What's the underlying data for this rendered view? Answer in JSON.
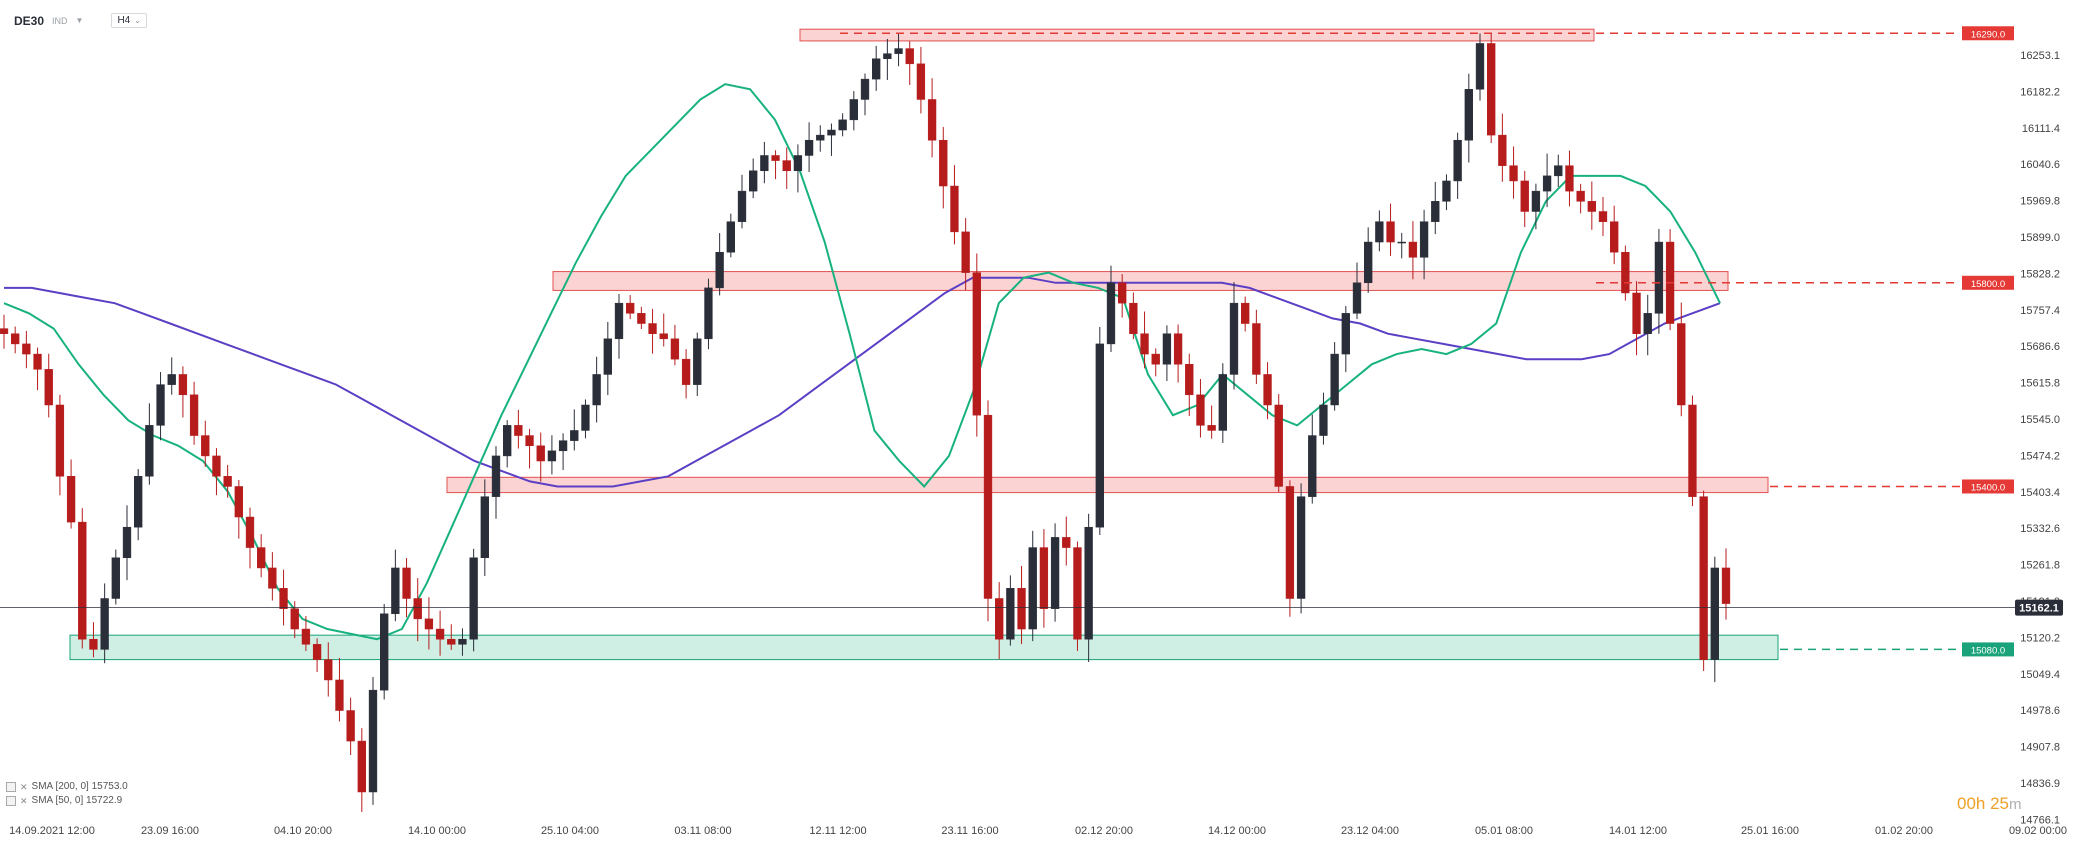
{
  "header": {
    "symbol": "DE30",
    "exchange": "IND",
    "timeframe": "H4"
  },
  "legend": {
    "sma200": "SMA [200, 0] 15753.0",
    "sma50": "SMA [50, 0] 15722.9"
  },
  "timer": {
    "main": "00h 25",
    "sub": "m"
  },
  "chart_data": {
    "type": "candlestick",
    "symbol": "DE30",
    "timeframe": "H4",
    "current_price": 15162.1,
    "ylim": [
      14745,
      16320
    ],
    "y_ticks": [
      "16253.1",
      "16182.2",
      "16111.4",
      "16040.6",
      "15969.8",
      "15899.0",
      "15828.2",
      "15757.4",
      "15686.6",
      "15615.8",
      "15545.0",
      "15474.2",
      "15403.4",
      "15332.6",
      "15261.8",
      "15191.0",
      "15120.2",
      "15049.4",
      "14978.6",
      "14907.8",
      "14836.9",
      "14766.1"
    ],
    "x_ticks": [
      "14.09.2021  12:00",
      "23.09  16:00",
      "04.10  20:00",
      "14.10  00:00",
      "25.10  04:00",
      "03.11  08:00",
      "12.11  12:00",
      "23.11  16:00",
      "02.12  20:00",
      "14.12  00:00",
      "23.12  04:00",
      "05.01  08:00",
      "14.01  12:00",
      "25.01  16:00",
      "01.02  20:00",
      "09.02  00:00"
    ],
    "series_close": [
      15700,
      15680,
      15660,
      15630,
      15560,
      15420,
      15330,
      15100,
      15080,
      15180,
      15260,
      15320,
      15420,
      15520,
      15600,
      15620,
      15580,
      15500,
      15460,
      15420,
      15400,
      15340,
      15280,
      15240,
      15200,
      15160,
      15120,
      15090,
      15060,
      15020,
      14960,
      14900,
      14800,
      15000,
      15150,
      15240,
      15180,
      15140,
      15120,
      15100,
      15090,
      15100,
      15260,
      15380,
      15460,
      15520,
      15500,
      15480,
      15450,
      15470,
      15490,
      15510,
      15560,
      15620,
      15690,
      15760,
      15740,
      15720,
      15700,
      15690,
      15650,
      15600,
      15690,
      15790,
      15860,
      15920,
      15980,
      16020,
      16050,
      16040,
      16020,
      16050,
      16080,
      16090,
      16100,
      16120,
      16160,
      16200,
      16240,
      16250,
      16260,
      16230,
      16160,
      16080,
      15990,
      15900,
      15820,
      15540,
      15180,
      15100,
      15200,
      15120,
      15280,
      15160,
      15300,
      15280,
      15100,
      15320,
      15680,
      15800,
      15760,
      15700,
      15660,
      15640,
      15700,
      15640,
      15580,
      15520,
      15510,
      15620,
      15760,
      15720,
      15620,
      15560,
      15400,
      15180,
      15380,
      15500,
      15560,
      15660,
      15740,
      15800,
      15880,
      15920,
      15880,
      15880,
      15850,
      15920,
      15960,
      16000,
      16080,
      16180,
      16270,
      16090,
      16030,
      16000,
      15940,
      15980,
      16010,
      16030,
      15980,
      15960,
      15940,
      15920,
      15860,
      15780,
      15700,
      15740,
      15880,
      15720,
      15560,
      15380,
      15060,
      15240,
      15170
    ],
    "sma50_close": [
      15760,
      15740,
      15710,
      15640,
      15580,
      15530,
      15500,
      15480,
      15450,
      15390,
      15300,
      15200,
      15140,
      15120,
      15110,
      15100,
      15120,
      15210,
      15320,
      15430,
      15540,
      15640,
      15740,
      15840,
      15930,
      16010,
      16060,
      16110,
      16160,
      16190,
      16180,
      16120,
      16020,
      15880,
      15700,
      15510,
      15450,
      15400,
      15460,
      15590,
      15760,
      15810,
      15820,
      15800,
      15790,
      15770,
      15620,
      15540,
      15560,
      15620,
      15580,
      15540,
      15520,
      15560,
      15600,
      15640,
      15660,
      15670,
      15660,
      15680,
      15720,
      15860,
      15960,
      16010,
      16010,
      16010,
      15990,
      15940,
      15860,
      15760
    ],
    "sma200_close": [
      15790,
      15790,
      15780,
      15770,
      15760,
      15740,
      15720,
      15700,
      15680,
      15660,
      15640,
      15620,
      15600,
      15570,
      15540,
      15510,
      15480,
      15450,
      15430,
      15410,
      15400,
      15400,
      15400,
      15410,
      15420,
      15450,
      15480,
      15510,
      15540,
      15580,
      15620,
      15660,
      15700,
      15740,
      15780,
      15810,
      15810,
      15810,
      15800,
      15800,
      15800,
      15800,
      15800,
      15800,
      15800,
      15790,
      15770,
      15750,
      15730,
      15720,
      15700,
      15690,
      15680,
      15670,
      15660,
      15650,
      15650,
      15650,
      15660,
      15690,
      15720,
      15740,
      15760
    ]
  },
  "levels": [
    {
      "label": "16290.0",
      "value": 16290.0,
      "color": "#e53935",
      "style": "dashed"
    },
    {
      "label": "15800.0",
      "value": 15800.0,
      "color": "#e53935",
      "style": "dashed"
    },
    {
      "label": "15400.0",
      "value": 15400.0,
      "color": "#e53935",
      "style": "dashed"
    },
    {
      "label": "15080.0",
      "value": 15080.0,
      "color": "#1aa37a",
      "style": "dashed"
    }
  ],
  "colors": {
    "up": "#2a2e39",
    "down": "#b71c1c",
    "sma50": "#17b27f",
    "sma200": "#5b3fc4",
    "resistance_fill": "rgba(244,80,80,0.25)",
    "resistance_stroke": "#e35050",
    "support_fill": "rgba(36,180,130,0.22)",
    "support_stroke": "#1aa37a",
    "current_price_bg": "#2a2e39"
  }
}
